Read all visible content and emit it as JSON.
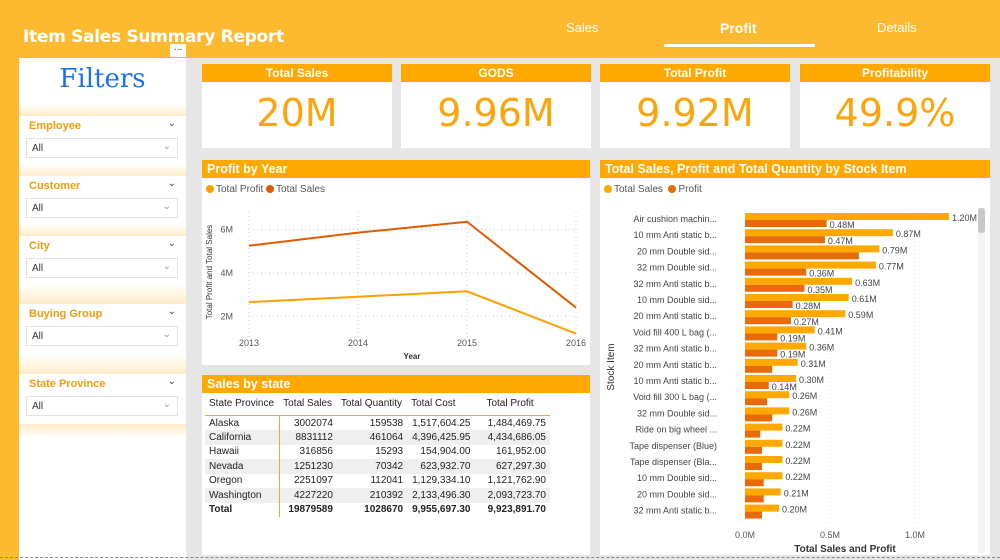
{
  "app": {
    "title": "Item Sales Summary Report",
    "more_label": "..."
  },
  "tabs": [
    {
      "label": "Sales",
      "active": false
    },
    {
      "label": "Profit",
      "active": true
    },
    {
      "label": "Details",
      "active": false
    }
  ],
  "filters": {
    "title": "Filters",
    "slicers": [
      {
        "label": "Employee",
        "value": "All"
      },
      {
        "label": "Customer",
        "value": "All"
      },
      {
        "label": "City",
        "value": "All"
      },
      {
        "label": "Buying Group",
        "value": "All"
      },
      {
        "label": "State Province",
        "value": "All"
      }
    ]
  },
  "cards": [
    {
      "title": "Total Sales",
      "value": "20M"
    },
    {
      "title": "GODS",
      "value": "9.96M"
    },
    {
      "title": "Total Profit",
      "value": "9.92M"
    },
    {
      "title": "Profitability",
      "value": "49.9%"
    }
  ],
  "colors": {
    "accent": "#ffa800",
    "sales_line": "#e05a00",
    "profit_line": "#ffa000",
    "bar_sales": "#ffa800",
    "bar_profit": "#e86a0a"
  },
  "sales_table": {
    "title": "Sales by state",
    "columns": [
      "State Province",
      "Total Sales",
      "Total Quantity",
      "Total Cost",
      "Total Profit"
    ],
    "rows": [
      [
        "Alaska",
        "3002074",
        "159538",
        "1,517,604.25",
        "1,484,469.75"
      ],
      [
        "California",
        "8831112",
        "461064",
        "4,396,425.95",
        "4,434,686.05"
      ],
      [
        "Hawaii",
        "316856",
        "15293",
        "154,904.00",
        "161,952.00"
      ],
      [
        "Nevada",
        "1251230",
        "70342",
        "623,932.70",
        "627,297.30"
      ],
      [
        "Oregon",
        "2251097",
        "112041",
        "1,129,334.10",
        "1,121,762.90"
      ],
      [
        "Washington",
        "4227220",
        "210392",
        "2,133,496.30",
        "2,093,723.70"
      ]
    ],
    "total": [
      "Total",
      "19879589",
      "1028670",
      "9,955,697.30",
      "9,923,891.70"
    ]
  },
  "chart_data": [
    {
      "type": "line",
      "title": "Profit by Year",
      "xlabel": "Year",
      "ylabel": "Total Profit and Total Sales",
      "x": [
        "2013",
        "2014",
        "2015",
        "2016"
      ],
      "yticks": [
        "2M",
        "4M",
        "6M"
      ],
      "ylim": [
        1.0,
        6.8
      ],
      "legend": "top-left",
      "grid": true,
      "series": [
        {
          "name": "Total Profit",
          "values": [
            2.65,
            2.9,
            3.15,
            1.2
          ]
        },
        {
          "name": "Total Sales",
          "values": [
            5.25,
            5.85,
            6.35,
            2.4
          ]
        }
      ]
    },
    {
      "type": "bar",
      "orientation": "horizontal",
      "title": "Total Sales, Profit and Total Quantity by Stock Item",
      "xlabel": "Total Sales and Profit",
      "ylabel": "Stock Item",
      "xticks": [
        "0.0M",
        "0.5M",
        "1.0M"
      ],
      "xlim": [
        0,
        1.25
      ],
      "legend": "top-left",
      "grid": true,
      "categories": [
        "Air cushion machin...",
        "10 mm Anti static b...",
        "20 mm Double sid...",
        "32 mm Double sid...",
        "32 mm Anti static b...",
        "10 mm Double sid...",
        "20 mm Anti static b...",
        "Void fill 400 L bag (...",
        "32 mm Anti static b...",
        "20 mm Anti static b...",
        "10 mm Anti static b...",
        "Void fill 300 L bag (...",
        "32 mm Double sid...",
        "Ride on big wheel ...",
        "Tape dispenser (Blue)",
        "Tape dispenser (Bla...",
        "10 mm Double sid...",
        "20 mm Double sid...",
        "32 mm Anti static b..."
      ],
      "series": [
        {
          "name": "Total Sales",
          "values": [
            1.2,
            0.87,
            0.79,
            0.77,
            0.63,
            0.61,
            0.59,
            0.41,
            0.36,
            0.31,
            0.3,
            0.26,
            0.26,
            0.22,
            0.22,
            0.22,
            0.22,
            0.21,
            0.2
          ],
          "labels": [
            "1.20M",
            "0.87M",
            "0.79M",
            "0.77M",
            "0.63M",
            "0.61M",
            "0.59M",
            "0.41M",
            "0.36M",
            "0.31M",
            "0.30M",
            "0.26M",
            "0.26M",
            "0.22M",
            "0.22M",
            "0.22M",
            "0.22M",
            "0.21M",
            "0.20M"
          ]
        },
        {
          "name": "Profit",
          "values": [
            0.48,
            0.47,
            0.67,
            0.36,
            0.35,
            0.28,
            0.27,
            0.19,
            0.19,
            0.16,
            0.14,
            0.13,
            0.16,
            0.09,
            0.1,
            0.1,
            0.11,
            0.11,
            0.1
          ],
          "labels": [
            "0.48M",
            "0.47M",
            "",
            "0.36M",
            "0.35M",
            "0.28M",
            "0.27M",
            "0.19M",
            "0.19M",
            "",
            "0.14M",
            "",
            "",
            "",
            "",
            "",
            "",
            "",
            ""
          ]
        }
      ]
    }
  ]
}
